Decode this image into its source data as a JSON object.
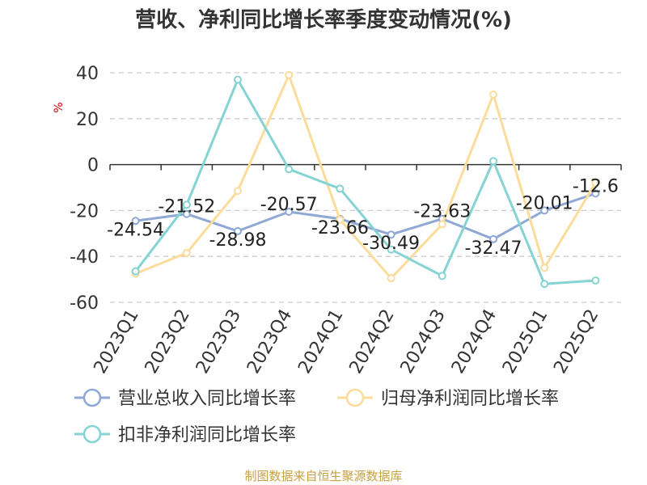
{
  "chart_data": {
    "type": "line",
    "title": "营收、净利同比增长率季度变动情况(%)",
    "ylabel": "%",
    "ylim": [
      -60,
      40
    ],
    "yticks": [
      40,
      20,
      0,
      -20,
      -40,
      -60
    ],
    "grid": true,
    "legend_position": "bottom",
    "categories": [
      "2023Q1",
      "2023Q2",
      "2023Q3",
      "2023Q4",
      "2024Q1",
      "2024Q2",
      "2024Q3",
      "2024Q4",
      "2025Q1",
      "2025Q2"
    ],
    "series": [
      {
        "name": "营业总收入同比增长率",
        "color": "#8fa8d6",
        "values": [
          -24.54,
          -21.52,
          -28.98,
          -20.57,
          -23.66,
          -30.49,
          -23.63,
          -32.47,
          -20.01,
          -12.6
        ],
        "labels": [
          "-24.54",
          "-21.52",
          "-28.98",
          "-20.57",
          "-23.66",
          "-30.49",
          "-23.63",
          "-32.47",
          "-20.01",
          "-12.6"
        ]
      },
      {
        "name": "归母净利润同比增长率",
        "color": "#fcdc9a",
        "values": [
          -47.5,
          -38.5,
          -11.5,
          39,
          -24,
          -49.5,
          -26,
          30.5,
          -45,
          -8
        ]
      },
      {
        "name": "扣非净利润同比增长率",
        "color": "#86d3d3",
        "values": [
          -46.5,
          -17.5,
          37,
          -2,
          -10.5,
          -37,
          -48.5,
          1.5,
          -52,
          -50.5
        ]
      }
    ]
  },
  "source": "制图数据来自恒生聚源数据库",
  "colors": {
    "title": "#333333",
    "unit": "#cc0000",
    "source": "#c8a040",
    "grid": "#cccccc"
  }
}
